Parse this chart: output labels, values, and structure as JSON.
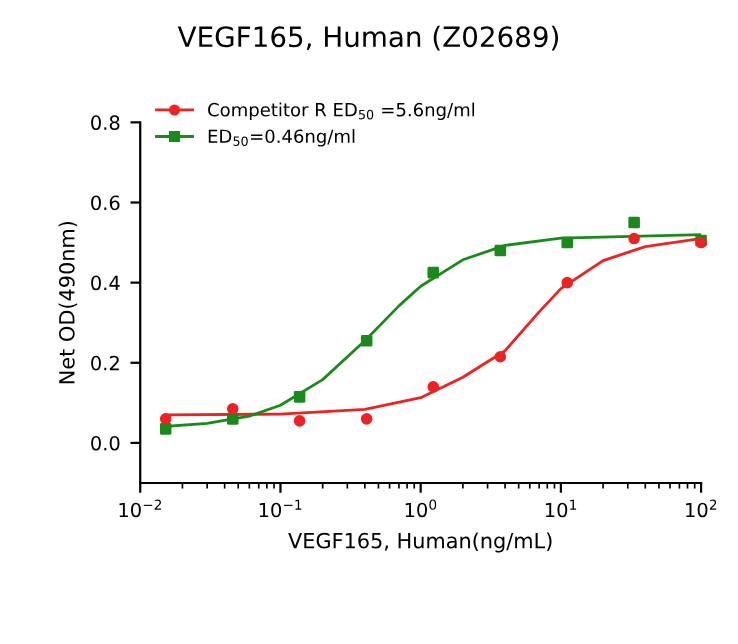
{
  "chart_data": {
    "type": "scatter",
    "title": "VEGF165, Human (Z02689)",
    "xlabel": "VEGF165, Human(ng/mL)",
    "ylabel": "Net OD(490nm)",
    "log": "x",
    "xlim": [
      0.01,
      100
    ],
    "xticks": [
      {
        "value": 0.01,
        "label": "10$^{−2}$"
      },
      {
        "value": 0.1,
        "label": "10$^{−1}$"
      },
      {
        "value": 1,
        "label": "10$^{0}$"
      },
      {
        "value": 10,
        "label": "10$^{1}$"
      },
      {
        "value": 100,
        "label": "10$^{2}$"
      }
    ],
    "ylim": [
      -0.1,
      0.8
    ],
    "yticks": [
      {
        "value": 0.0,
        "label": "0.0"
      },
      {
        "value": 0.2,
        "label": "0.2"
      },
      {
        "value": 0.4,
        "label": "0.4"
      },
      {
        "value": 0.6,
        "label": "0.6"
      },
      {
        "value": 0.8,
        "label": "0.8"
      }
    ],
    "grid": false,
    "legend": "top left",
    "series": [
      {
        "name": "Competitor R ED$_{50}$ =5.6ng/ml",
        "color": "#ee2222",
        "marker": "circle",
        "x": [
          0.0152,
          0.0457,
          0.137,
          0.412,
          1.23,
          3.7,
          11.1,
          33.3,
          100
        ],
        "values": [
          0.06,
          0.085,
          0.055,
          0.06,
          0.14,
          0.215,
          0.4,
          0.51,
          0.5
        ]
      },
      {
        "name": "ED$_{50}$=0.46ng/ml",
        "color": "#1a8a1a",
        "marker": "square",
        "x": [
          0.0152,
          0.0457,
          0.137,
          0.412,
          1.23,
          3.7,
          11.1,
          33.3,
          100
        ],
        "values": [
          0.035,
          0.06,
          0.115,
          0.255,
          0.425,
          0.48,
          0.5,
          0.55,
          0.505
        ]
      },
      {
        "type": "line",
        "color": "#ee2222",
        "x": [
          0.015,
          0.1,
          0.4,
          1,
          2,
          4,
          7,
          10,
          20,
          40,
          100
        ],
        "values": [
          0.07,
          0.072,
          0.084,
          0.113,
          0.164,
          0.23,
          0.327,
          0.385,
          0.455,
          0.49,
          0.51
        ]
      },
      {
        "type": "line",
        "color": "#1a8a1a",
        "x": [
          0.015,
          0.03,
          0.06,
          0.1,
          0.2,
          0.4,
          0.7,
          1,
          2,
          4,
          10,
          100
        ],
        "values": [
          0.041,
          0.049,
          0.067,
          0.094,
          0.158,
          0.255,
          0.342,
          0.391,
          0.457,
          0.493,
          0.511,
          0.52
        ]
      }
    ]
  }
}
